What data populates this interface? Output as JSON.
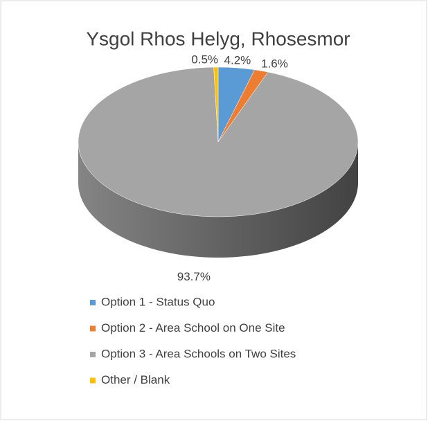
{
  "chart_data": {
    "type": "pie",
    "title": "Ysgol Rhos Helyg, Rhosesmor",
    "categories": [
      "Option 1 - Status Quo",
      "Option 2 - Area School on One Site",
      "Option 3 - Area Schools on Two Sites",
      "Other / Blank"
    ],
    "values": [
      4.2,
      1.6,
      93.7,
      0.5
    ],
    "value_labels": [
      "4.2%",
      "1.6%",
      "93.7%",
      "0.5%"
    ],
    "colors": [
      "#5b9bd5",
      "#ed7d31",
      "#a5a5a5",
      "#ffc000"
    ],
    "legend": "bottom"
  }
}
